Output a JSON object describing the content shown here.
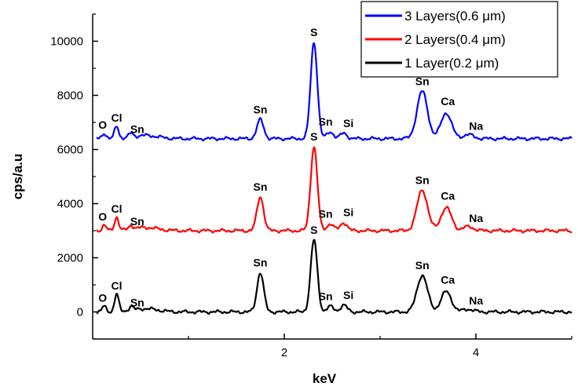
{
  "chart_data": {
    "type": "line",
    "title": "",
    "xlabel": "keV",
    "ylabel": "cps/a.u",
    "xlim": [
      0,
      5
    ],
    "ylim": [
      -1000,
      11000
    ],
    "xticks": [
      2,
      4
    ],
    "xtick_labels": [
      "2",
      "4"
    ],
    "yticks": [
      0,
      2000,
      4000,
      6000,
      8000,
      10000
    ],
    "ytick_labels": [
      "0",
      "2000",
      "4000",
      "6000",
      "8000",
      "10000"
    ],
    "grid": false,
    "legend_position": "top-right",
    "series": [
      {
        "name": "3 Layers(0.6 μm)",
        "color": "#0000ff",
        "baseline": 6400,
        "peaks": [
          {
            "label": "O",
            "x": 0.12,
            "y": 6600
          },
          {
            "label": "Cl",
            "x": 0.25,
            "y": 6850
          },
          {
            "label": "Sn",
            "x": 0.4,
            "y": 6550
          },
          {
            "label": "Sn",
            "x": 1.75,
            "y": 7100
          },
          {
            "label": "S",
            "x": 2.31,
            "y": 9950
          },
          {
            "label": "Sn",
            "x": 2.48,
            "y": 6650
          },
          {
            "label": "Si",
            "x": 2.62,
            "y": 6600
          },
          {
            "label": "Sn",
            "x": 3.44,
            "y": 8150
          },
          {
            "label": "Ca",
            "x": 3.69,
            "y": 7350
          },
          {
            "label": "Na",
            "x": 3.92,
            "y": 6550
          }
        ]
      },
      {
        "name": "2 Layers(0.4 μm)",
        "color": "#ff0000",
        "baseline": 3000,
        "peaks": [
          {
            "label": "O",
            "x": 0.12,
            "y": 3200
          },
          {
            "label": "Cl",
            "x": 0.25,
            "y": 3500
          },
          {
            "label": "Sn",
            "x": 0.4,
            "y": 3150
          },
          {
            "label": "Sn",
            "x": 1.75,
            "y": 4250
          },
          {
            "label": "S",
            "x": 2.31,
            "y": 6100
          },
          {
            "label": "Sn",
            "x": 2.48,
            "y": 3250
          },
          {
            "label": "Si",
            "x": 2.62,
            "y": 3300
          },
          {
            "label": "Sn",
            "x": 3.44,
            "y": 4500
          },
          {
            "label": "Ca",
            "x": 3.69,
            "y": 3850
          },
          {
            "label": "Na",
            "x": 3.92,
            "y": 3150
          }
        ]
      },
      {
        "name": "1 Layer(0.2 μm)",
        "color": "#000000",
        "baseline": 0,
        "peaks": [
          {
            "label": "O",
            "x": 0.12,
            "y": 200
          },
          {
            "label": "Cl",
            "x": 0.25,
            "y": 650
          },
          {
            "label": "Sn",
            "x": 0.4,
            "y": 150
          },
          {
            "label": "Sn",
            "x": 1.75,
            "y": 1450
          },
          {
            "label": "S",
            "x": 2.31,
            "y": 2650
          },
          {
            "label": "Sn",
            "x": 2.48,
            "y": 200
          },
          {
            "label": "Si",
            "x": 2.62,
            "y": 250
          },
          {
            "label": "Sn",
            "x": 3.44,
            "y": 1350
          },
          {
            "label": "Ca",
            "x": 3.69,
            "y": 750
          },
          {
            "label": "Na",
            "x": 3.92,
            "y": 100
          }
        ]
      }
    ]
  }
}
